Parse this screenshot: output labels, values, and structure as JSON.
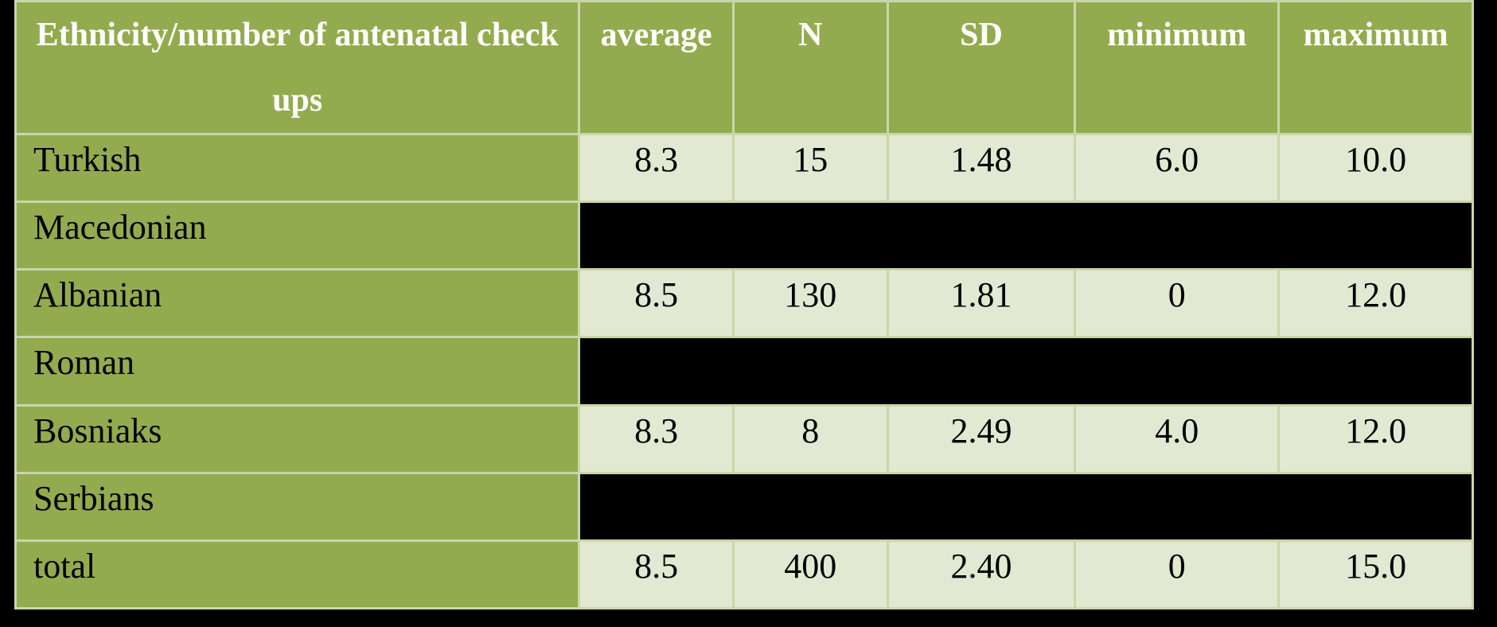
{
  "table": {
    "headers": [
      "Ethnicity/number of antenatal check ups",
      "average",
      "N",
      "SD",
      "minimum",
      "maximum"
    ],
    "rows": [
      {
        "label": "Turkish",
        "values": [
          "8.3",
          "15",
          "1.48",
          "6.0",
          "10.0"
        ]
      },
      {
        "label": "Macedonian",
        "values": [
          "",
          "",
          "",
          "",
          ""
        ]
      },
      {
        "label": "Albanian",
        "values": [
          "8.5",
          "130",
          "1.81",
          "0",
          "12.0"
        ]
      },
      {
        "label": "Roman",
        "values": [
          "",
          "",
          "",
          "",
          ""
        ]
      },
      {
        "label": "Bosniaks",
        "values": [
          "8.3",
          "8",
          "2.49",
          "4.0",
          "12.0"
        ]
      },
      {
        "label": "Serbians",
        "values": [
          "",
          "",
          "",
          "",
          ""
        ]
      },
      {
        "label": "total",
        "values": [
          "8.5",
          "400",
          "2.40",
          "0",
          "15.0"
        ]
      }
    ]
  },
  "colors": {
    "header_green": "#93ab4f",
    "label_green": "#93ab4f",
    "light_cell": "#e3e8d2",
    "dark_cell": "#000000",
    "grid_line": "#c8d7a8",
    "background": "#000000"
  }
}
